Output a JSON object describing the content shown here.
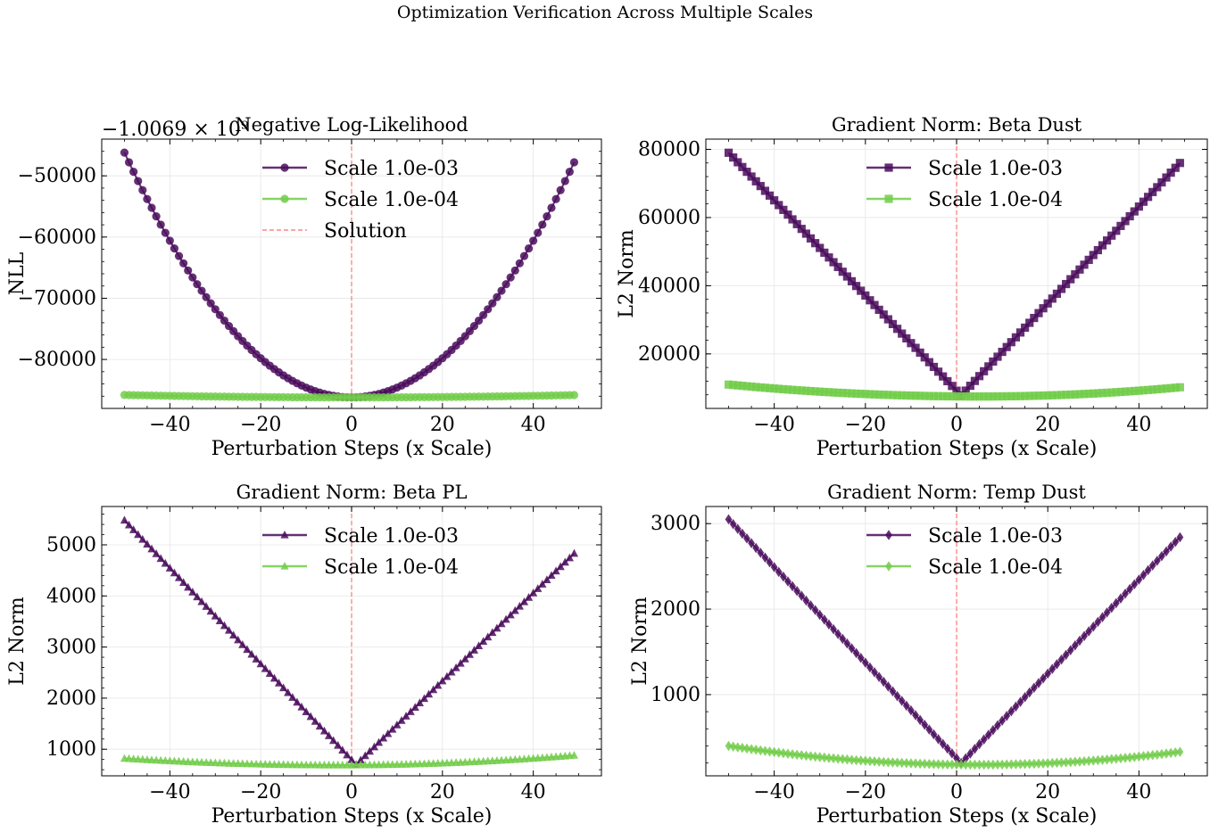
{
  "figure_title": "Optimization Verification Across Multiple Scales",
  "colors": {
    "scale_1e3": "#4a0c5c",
    "scale_1e4": "#72cc4a",
    "solution": "#ff6b6b",
    "grid": "#e6e6e6"
  },
  "chart_data": [
    {
      "type": "line",
      "title": "Negative Log-Likelihood",
      "xlabel": "Perturbation Steps (x Scale)",
      "ylabel": "NLL",
      "offset_text": "−1.0069 × 10⁹",
      "marker": "circle",
      "xlim": [
        -55,
        55
      ],
      "ylim": [
        -88000,
        -44000
      ],
      "xticks": [
        -40,
        -20,
        0,
        20,
        40
      ],
      "xtick_labels": [
        "−40",
        "−20",
        "0",
        "20",
        "40"
      ],
      "yticks": [
        -80000,
        -70000,
        -60000,
        -50000
      ],
      "ytick_labels": [
        "−80000",
        "−70000",
        "−60000",
        "−50000"
      ],
      "legend": [
        "Scale 1.0e-03",
        "Scale 1.0e-04",
        "Solution"
      ],
      "model": {
        "x_min": -50,
        "x_max": 49,
        "series": [
          {
            "name": "Scale 1.0e-03",
            "min_y": -86200,
            "a": 16,
            "b": -10,
            "c": 0
          },
          {
            "name": "Scale 1.0e-04",
            "min_y": -86200,
            "a": 0.16,
            "b": -1,
            "c": 0
          }
        ]
      },
      "solution_x": 0
    },
    {
      "type": "line",
      "title": "Gradient Norm: Beta Dust",
      "xlabel": "Perturbation Steps (x Scale)",
      "ylabel": "L2 Norm",
      "marker": "square",
      "xlim": [
        -55,
        55
      ],
      "ylim": [
        4000,
        83000
      ],
      "xticks": [
        -40,
        -20,
        0,
        20,
        40
      ],
      "xtick_labels": [
        "−40",
        "−20",
        "0",
        "20",
        "40"
      ],
      "yticks": [
        20000,
        40000,
        60000,
        80000
      ],
      "ytick_labels": [
        "20000",
        "40000",
        "60000",
        "80000"
      ],
      "legend": [
        "Scale 1.0e-03",
        "Scale 1.0e-04"
      ],
      "model": {
        "x_min": -50,
        "x_max": 49,
        "series": [
          {
            "name": "Scale 1.0e-03",
            "kind": "vabs",
            "base": 7800,
            "x0": 1,
            "left_at_min": 79000,
            "right_at_max": 76000
          },
          {
            "name": "Scale 1.0e-04",
            "kind": "quad",
            "base": 7500,
            "x0": 5,
            "left_at_min": 11000,
            "right_at_max": 10200
          }
        ]
      },
      "solution_x": 0
    },
    {
      "type": "line",
      "title": "Gradient Norm: Beta PL",
      "xlabel": "Perturbation Steps (x Scale)",
      "ylabel": "L2 Norm",
      "marker": "triangle",
      "xlim": [
        -55,
        55
      ],
      "ylim": [
        480,
        5750
      ],
      "xticks": [
        -40,
        -20,
        0,
        20,
        40
      ],
      "xtick_labels": [
        "−40",
        "−20",
        "0",
        "20",
        "40"
      ],
      "yticks": [
        1000,
        2000,
        3000,
        4000,
        5000
      ],
      "ytick_labels": [
        "1000",
        "2000",
        "3000",
        "4000",
        "5000"
      ],
      "legend": [
        "Scale 1.0e-03",
        "Scale 1.0e-04"
      ],
      "model": {
        "x_min": -50,
        "x_max": 49,
        "series": [
          {
            "name": "Scale 1.0e-03",
            "kind": "vabs",
            "base": 700,
            "x0": 1,
            "left_at_min": 5480,
            "right_at_max": 4830
          },
          {
            "name": "Scale 1.0e-04",
            "kind": "quad",
            "base": 690,
            "x0": -3,
            "left_at_min": 820,
            "right_at_max": 880
          }
        ]
      },
      "solution_x": 0
    },
    {
      "type": "line",
      "title": "Gradient Norm: Temp Dust",
      "xlabel": "Perturbation Steps (x Scale)",
      "ylabel": "L2 Norm",
      "marker": "diamond",
      "xlim": [
        -55,
        55
      ],
      "ylim": [
        50,
        3200
      ],
      "xticks": [
        -40,
        -20,
        0,
        20,
        40
      ],
      "xtick_labels": [
        "−40",
        "−20",
        "0",
        "20",
        "40"
      ],
      "yticks": [
        1000,
        2000,
        3000
      ],
      "ytick_labels": [
        "1000",
        "2000",
        "3000"
      ],
      "legend": [
        "Scale 1.0e-03",
        "Scale 1.0e-04"
      ],
      "model": {
        "x_min": -50,
        "x_max": 49,
        "series": [
          {
            "name": "Scale 1.0e-03",
            "kind": "vabs",
            "base": 200,
            "x0": 1,
            "left_at_min": 3050,
            "right_at_max": 2840
          },
          {
            "name": "Scale 1.0e-04",
            "kind": "quad",
            "base": 180,
            "x0": 5,
            "left_at_min": 400,
            "right_at_max": 330
          }
        ]
      },
      "solution_x": 0
    }
  ]
}
